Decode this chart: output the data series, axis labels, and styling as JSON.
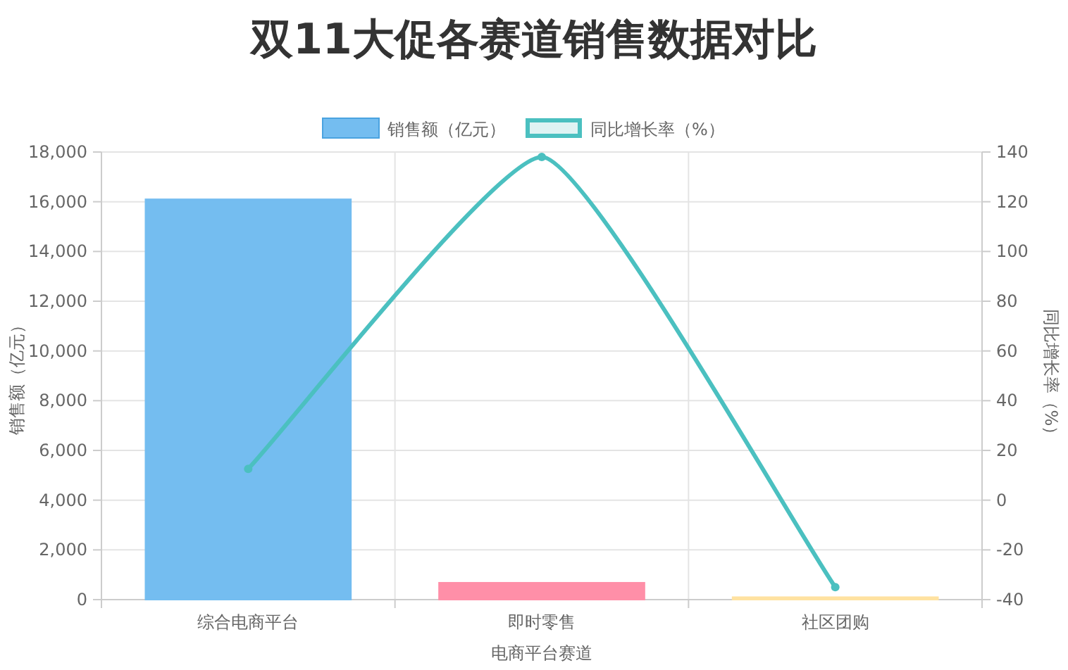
{
  "chart_data": {
    "type": "bar",
    "title": "双11大促各赛道销售数据对比",
    "xlabel": "电商平台赛道",
    "ylabel": "销售额（亿元）",
    "y2label": "同比增长率（%）",
    "categories": [
      "综合电商平台",
      "即时零售",
      "社区团购"
    ],
    "series": [
      {
        "name": "销售额（亿元）",
        "colors": [
          "#74bdf0",
          "#ff8fa8",
          "#ffe2a0"
        ],
        "values": [
          16100,
          680,
          100
        ]
      },
      {
        "name": "同比增长率（%）",
        "type": "line",
        "axis": "y2",
        "color": "#4bc0c0",
        "values": [
          12.6,
          138,
          -35
        ],
        "marker": "circle"
      }
    ],
    "ylim": [
      0,
      18000
    ],
    "yticks": [
      {
        "value": 0,
        "label": "0"
      },
      {
        "value": 2000,
        "label": "2,000"
      },
      {
        "value": 4000,
        "label": "4,000"
      },
      {
        "value": 6000,
        "label": "6,000"
      },
      {
        "value": 8000,
        "label": "8,000"
      },
      {
        "value": 10000,
        "label": "10,000"
      },
      {
        "value": 12000,
        "label": "12,000"
      },
      {
        "value": 14000,
        "label": "14,000"
      },
      {
        "value": 16000,
        "label": "16,000"
      },
      {
        "value": 18000,
        "label": "18,000"
      }
    ],
    "y2lim": [
      -40,
      140
    ],
    "y2ticks": [
      -40,
      -20,
      0,
      20,
      40,
      60,
      80,
      100,
      120,
      140
    ],
    "grid": true,
    "legend": "top"
  }
}
